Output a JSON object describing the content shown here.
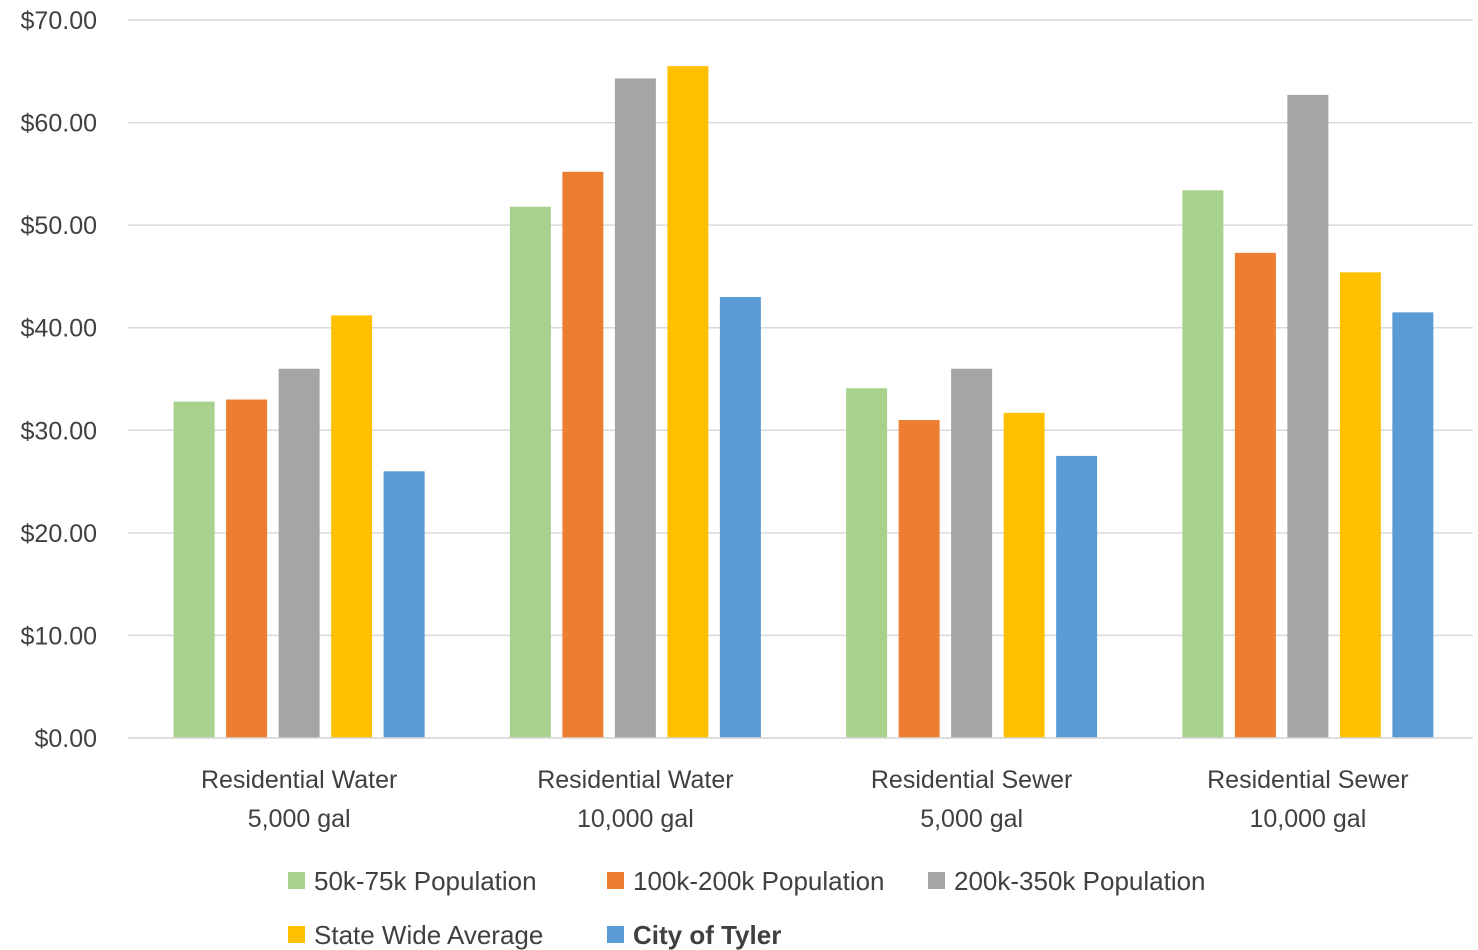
{
  "chart_data": {
    "type": "bar",
    "title": "",
    "xlabel": "",
    "ylabel": "",
    "ylim": [
      0,
      70
    ],
    "yticks": [
      0,
      10,
      20,
      30,
      40,
      50,
      60,
      70
    ],
    "ytick_labels": [
      "$0.00",
      "$10.00",
      "$20.00",
      "$30.00",
      "$40.00",
      "$50.00",
      "$60.00",
      "$70.00"
    ],
    "grid": true,
    "legend_position": "bottom",
    "categories": [
      [
        "Residential Water",
        "5,000 gal"
      ],
      [
        "Residential Water",
        "10,000 gal"
      ],
      [
        "Residential Sewer",
        "5,000 gal"
      ],
      [
        "Residential Sewer",
        "10,000 gal"
      ]
    ],
    "series": [
      {
        "name": "50k-75k Population",
        "color": "#A9D18E",
        "bold": false,
        "values": [
          32.8,
          51.8,
          34.1,
          53.4
        ]
      },
      {
        "name": "100k-200k Population",
        "color": "#ED7D31",
        "bold": false,
        "values": [
          33.0,
          55.2,
          31.0,
          47.3
        ]
      },
      {
        "name": "200k-350k Population",
        "color": "#A5A5A5",
        "bold": false,
        "values": [
          36.0,
          64.3,
          36.0,
          62.7
        ]
      },
      {
        "name": "State Wide Average",
        "color": "#FFC000",
        "bold": false,
        "values": [
          41.2,
          65.5,
          31.7,
          45.4
        ]
      },
      {
        "name": "City of Tyler",
        "color": "#5B9BD5",
        "bold": true,
        "values": [
          26.0,
          43.0,
          27.5,
          41.5
        ]
      }
    ]
  }
}
